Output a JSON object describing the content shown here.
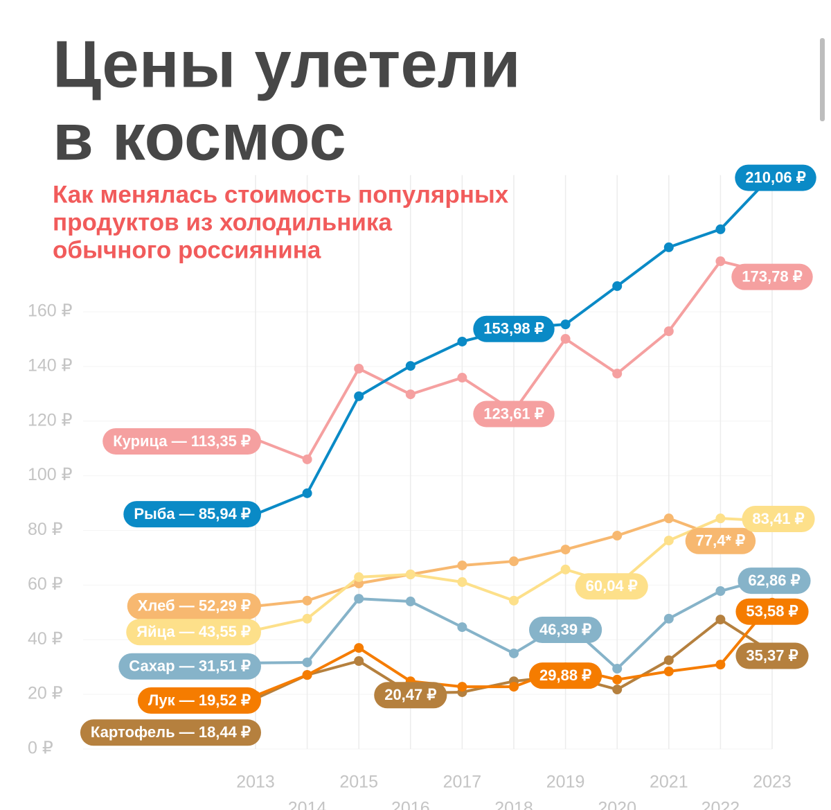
{
  "chart_data": {
    "type": "line",
    "title": [
      "Цены улетели",
      "в космос"
    ],
    "subtitle": [
      "Как менялась стоимость популярных",
      "продуктов из холодильника",
      "обычного россиянина"
    ],
    "x": [
      2013,
      2014,
      2015,
      2016,
      2017,
      2018,
      2019,
      2020,
      2021,
      2022,
      2023
    ],
    "xlim": [
      2013,
      2023
    ],
    "xticks": [
      2013,
      2014,
      2015,
      2016,
      2017,
      2018,
      2019,
      2020,
      2021,
      2022,
      2023
    ],
    "ylim": [
      0,
      210
    ],
    "yticks": [
      {
        "value": 0,
        "label": "0 ₽"
      },
      {
        "value": 20,
        "label": "20 ₽"
      },
      {
        "value": 40,
        "label": "40 ₽"
      },
      {
        "value": 60,
        "label": "60 ₽"
      },
      {
        "value": 80,
        "label": "80 ₽"
      },
      {
        "value": 100,
        "label": "100 ₽"
      },
      {
        "value": 120,
        "label": "120 ₽"
      },
      {
        "value": 140,
        "label": "140 ₽"
      },
      {
        "value": 160,
        "label": "160 ₽"
      }
    ],
    "grid": true,
    "series": [
      {
        "color": "#f5a0a0",
        "values": [
          113.35,
          106.0,
          139.2,
          129.8,
          135.9,
          123.61,
          150.1,
          137.4,
          152.9,
          178.5,
          173.78
        ],
        "value_labels": [
          "Курица — 113,35 ₽",
          null,
          null,
          null,
          null,
          "123,61 ₽",
          null,
          null,
          null,
          null,
          "173,78 ₽"
        ]
      },
      {
        "color": "#0a8ac6",
        "values": [
          85.94,
          93.6,
          129.1,
          140.2,
          149.1,
          153.98,
          155.4,
          169.4,
          183.6,
          190.2,
          210.06
        ],
        "value_labels": [
          "Рыба — 85,94 ₽",
          null,
          null,
          null,
          null,
          "153,98 ₽",
          null,
          null,
          null,
          null,
          "210,06 ₽"
        ]
      },
      {
        "color": "#f7b870",
        "values": [
          52.29,
          54.3,
          60.6,
          63.9,
          67.2,
          68.7,
          73.0,
          78.1,
          84.4,
          77.4,
          null
        ],
        "value_labels": [
          "Хлеб — 52,29 ₽",
          null,
          null,
          null,
          null,
          null,
          null,
          null,
          null,
          "77,4* ₽",
          null
        ]
      },
      {
        "color": "#fde08a",
        "values": [
          43.55,
          47.7,
          62.9,
          63.9,
          61.1,
          54.3,
          65.7,
          60.04,
          76.3,
          84.4,
          83.41
        ],
        "value_labels": [
          "Яйца — 43,55 ₽",
          null,
          null,
          null,
          null,
          null,
          null,
          "60,04 ₽",
          null,
          null,
          "83,41 ₽"
        ]
      },
      {
        "color": "#86b3c9",
        "values": [
          31.51,
          31.7,
          55.0,
          54.0,
          44.6,
          35.0,
          46.39,
          29.4,
          47.7,
          57.8,
          62.86
        ],
        "value_labels": [
          "Сахар — 31,51 ₽",
          null,
          null,
          null,
          null,
          null,
          "46,39 ₽",
          null,
          null,
          null,
          "62,86 ₽"
        ]
      },
      {
        "color": "#b5803e",
        "values": [
          18.44,
          27.1,
          32.2,
          20.47,
          20.8,
          24.8,
          26.9,
          21.8,
          32.5,
          47.4,
          35.37
        ],
        "value_labels": [
          "Картофель — 18,44 ₽",
          null,
          null,
          "20,47 ₽",
          null,
          null,
          null,
          null,
          null,
          null,
          "35,37 ₽"
        ]
      },
      {
        "color": "#f57c00",
        "values": [
          19.52,
          27.1,
          37.0,
          24.8,
          22.8,
          22.8,
          29.88,
          25.4,
          28.4,
          30.9,
          53.58
        ],
        "value_labels": [
          "Лук — 19,52 ₽",
          null,
          null,
          null,
          null,
          null,
          "29,88 ₽",
          null,
          null,
          null,
          "53,58 ₽"
        ]
      }
    ]
  }
}
